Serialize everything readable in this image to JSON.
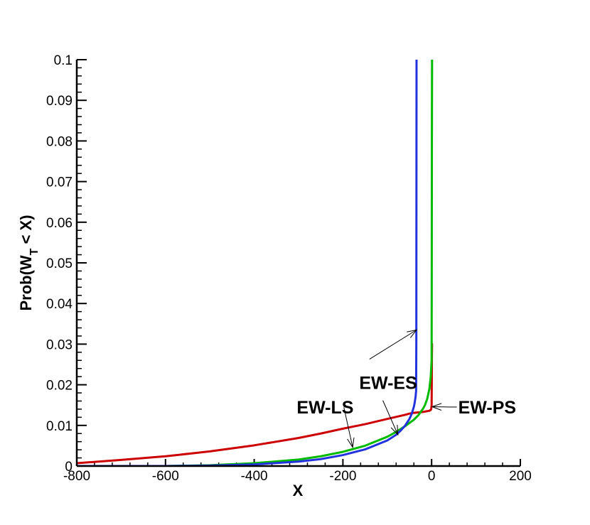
{
  "chart_data": {
    "type": "line",
    "title": "",
    "xlabel": "X",
    "ylabel": {
      "prefix": "Prob(W",
      "subscript": "T",
      "suffix": " < X)"
    },
    "xlim": [
      -800,
      200
    ],
    "ylim": [
      0,
      0.1
    ],
    "x_ticks": [
      -800,
      -600,
      -400,
      -200,
      0,
      200
    ],
    "x_tick_labels": [
      "-800",
      "-600",
      "-400",
      "-200",
      "0",
      "200"
    ],
    "y_ticks": [
      0,
      0.01,
      0.02,
      0.03,
      0.04,
      0.05,
      0.06,
      0.07,
      0.08,
      0.09,
      0.1
    ],
    "y_tick_labels": [
      "0",
      "0.01",
      "0.02",
      "0.03",
      "0.04",
      "0.05",
      "0.06",
      "0.07",
      "0.08",
      "0.09",
      "0.1"
    ],
    "grid": false,
    "legend": "none",
    "series": [
      {
        "color": "#cc0000",
        "x": [
          -800,
          -700,
          -600,
          -500,
          -400,
          -300,
          -250,
          -200,
          -150,
          -100,
          -80,
          -60,
          -50,
          -40,
          -30,
          -20,
          -10,
          -5,
          -2,
          -1,
          0,
          0.3,
          0.6,
          1
        ],
        "y": [
          0.0007,
          0.0015,
          0.0024,
          0.0036,
          0.0051,
          0.0069,
          0.008,
          0.0092,
          0.0103,
          0.0116,
          0.0121,
          0.0126,
          0.0129,
          0.0131,
          0.0132,
          0.0133,
          0.0135,
          0.0136,
          0.0138,
          0.014,
          0.015,
          0.02,
          0.027,
          0.03
        ]
      },
      {
        "color": "#00bb00",
        "x": [
          -800,
          -600,
          -500,
          -400,
          -300,
          -250,
          -200,
          -150,
          -100,
          -80,
          -60,
          -50,
          -40,
          -30,
          -20,
          -15,
          -10,
          -5,
          -2,
          0,
          0.3,
          0.6,
          1
        ],
        "y": [
          0,
          0,
          0.0002,
          0.0007,
          0.0016,
          0.0024,
          0.0035,
          0.005,
          0.0072,
          0.0084,
          0.0098,
          0.0106,
          0.0114,
          0.0125,
          0.014,
          0.015,
          0.0165,
          0.019,
          0.022,
          0.026,
          0.05,
          0.08,
          0.1
        ]
      },
      {
        "color": "#2233dd",
        "x": [
          -800,
          -600,
          -500,
          -400,
          -300,
          -250,
          -200,
          -150,
          -100,
          -80,
          -70,
          -60,
          -50,
          -45,
          -40,
          -38,
          -36,
          -35,
          -34.5,
          -34.2,
          -34
        ],
        "y": [
          0,
          0,
          0.0001,
          0.0004,
          0.0011,
          0.0017,
          0.0027,
          0.0041,
          0.0063,
          0.0077,
          0.0087,
          0.0099,
          0.0116,
          0.0128,
          0.0146,
          0.0157,
          0.0172,
          0.0185,
          0.03,
          0.07,
          0.1
        ]
      }
    ],
    "annotations": [
      {
        "text": "EW-LS",
        "x": -240,
        "y": 0.0145,
        "arrows": [
          [
            -178,
            0.0046
          ]
        ]
      },
      {
        "text": "EW-ES",
        "x": -45,
        "y": 0.0205,
        "arrows": [
          [
            -34,
            0.0335
          ],
          [
            -76,
            0.0077
          ]
        ]
      },
      {
        "text": "EW-PS",
        "x": 60,
        "y": 0.0145,
        "arrows": [
          [
            1,
            0.0146
          ]
        ]
      }
    ]
  }
}
